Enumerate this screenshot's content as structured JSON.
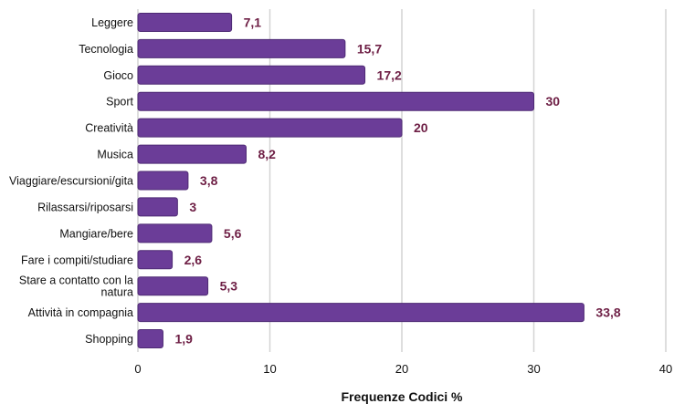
{
  "chart_data": {
    "type": "bar",
    "orientation": "horizontal",
    "categories": [
      [
        "Leggere"
      ],
      [
        "Tecnologia"
      ],
      [
        "Gioco"
      ],
      [
        "Sport"
      ],
      [
        "Creatività"
      ],
      [
        "Musica"
      ],
      [
        "Viaggiare/escursioni/gita"
      ],
      [
        "Rilassarsi/riposarsi"
      ],
      [
        "Mangiare/bere"
      ],
      [
        "Fare i compiti/studiare"
      ],
      [
        "Stare a contatto con la",
        "natura"
      ],
      [
        "Attività in compagnia"
      ],
      [
        "Shopping"
      ]
    ],
    "values": [
      7.1,
      15.7,
      17.2,
      30,
      20,
      8.2,
      3.8,
      3,
      5.6,
      2.6,
      5.3,
      33.8,
      1.9
    ],
    "value_labels": [
      "7,1",
      "15,7",
      "17,2",
      "30",
      "20",
      "8,2",
      "3,8",
      "3",
      "5,6",
      "2,6",
      "5,3",
      "33,8",
      "1,9"
    ],
    "xticks": [
      0,
      10,
      20,
      30,
      40
    ],
    "xlim": [
      0,
      40
    ],
    "xlabel": "Frequenze Codici %",
    "title": "",
    "grid": "vertical",
    "colors": {
      "bar": "#6b3d98",
      "bar_edge": "#4e2a74",
      "value_label": "#6e1f45",
      "grid": "#d4d4d4"
    }
  }
}
